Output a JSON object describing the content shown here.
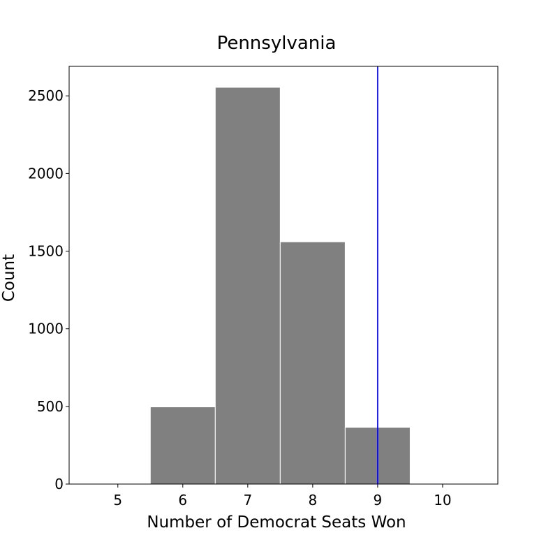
{
  "chart_data": {
    "type": "bar",
    "title": "Pennsylvania",
    "xlabel": "Number of Democrat Seats Won",
    "ylabel": "Count",
    "categories": [
      6,
      7,
      8,
      9
    ],
    "values": [
      497,
      2555,
      1560,
      365
    ],
    "bin_width": 1,
    "xlim": [
      4.25,
      10.85
    ],
    "ylim": [
      0,
      2690
    ],
    "xticks": [
      5,
      6,
      7,
      8,
      9,
      10
    ],
    "yticks": [
      0,
      500,
      1000,
      1500,
      2000,
      2500
    ],
    "reference_line": {
      "x": 9,
      "color": "#0000ff"
    },
    "bar_color": "#808080",
    "grid": false,
    "legend": "none"
  }
}
